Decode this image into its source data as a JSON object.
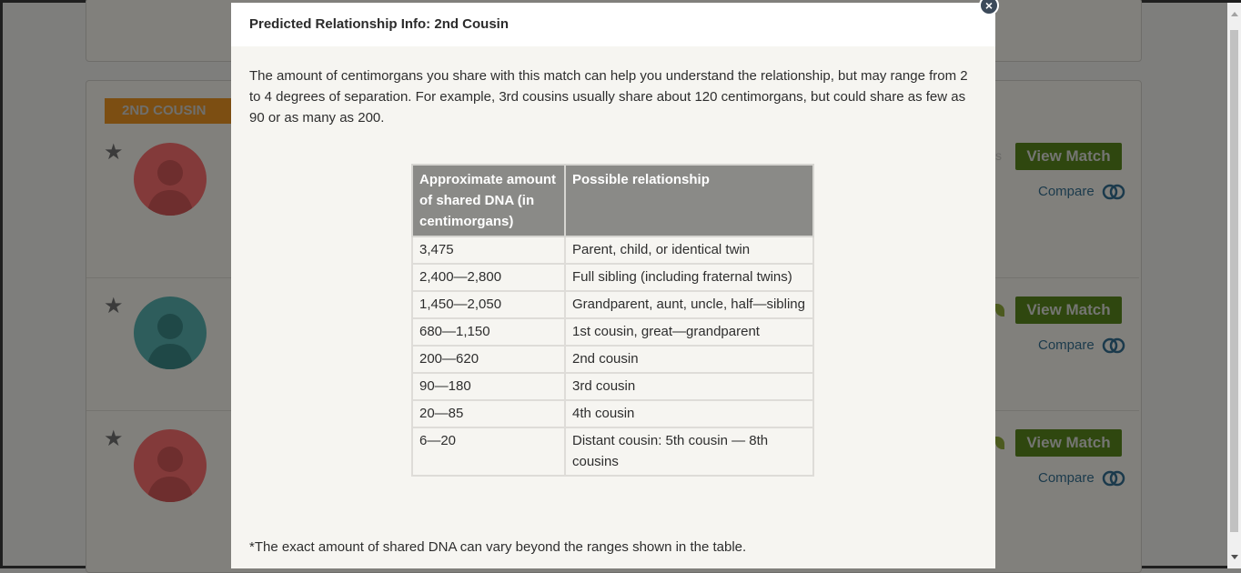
{
  "modal": {
    "title": "Predicted Relationship Info: 2nd Cousin",
    "close_glyph": "×",
    "intro": "The amount of centimorgans you share with this match can help you understand the relationship, but may range from 2 to 4 degrees of separation. For example, 3rd cousins usually share about 120 centimorgans, but could share as few as 90 or as many as 200.",
    "table": {
      "headers": [
        "Approximate amount of shared DNA (in centimorgans)",
        "Possible relationship"
      ],
      "rows": [
        [
          "3,475",
          "Parent, child, or identical twin"
        ],
        [
          "2,400—2,800",
          "Full sibling (including fraternal twins)"
        ],
        [
          "1,450—2,050",
          "Grandparent, aunt, uncle, half—sibling"
        ],
        [
          "680—1,150",
          "1st cousin, great—grandparent"
        ],
        [
          "200—620",
          "2nd cousin"
        ],
        [
          "90—180",
          "3rd cousin"
        ],
        [
          "20—85",
          "4th cousin"
        ],
        [
          "6—20",
          "Distant cousin: 5th cousin — 8th cousins"
        ]
      ]
    },
    "footnote": "*The exact amount of shared DNA can vary beyond the ranges shown in the table."
  },
  "background": {
    "badge": "2ND COUSIN",
    "ghost_text": "s",
    "matches": [
      {
        "star": "★",
        "avatar_color": "red",
        "view_label": "View Match",
        "compare_label": "Compare"
      },
      {
        "star": "★",
        "avatar_color": "teal",
        "view_label": "View Match",
        "compare_label": "Compare"
      },
      {
        "star": "★",
        "avatar_color": "red",
        "view_label": "View Match",
        "compare_label": "Compare"
      }
    ]
  },
  "colors": {
    "overlay": "#7e7e7c",
    "badge": "#7c4e12",
    "view_button": "#2f470f",
    "table_header": "#8a8a87",
    "close_button": "#3c4a5a"
  }
}
